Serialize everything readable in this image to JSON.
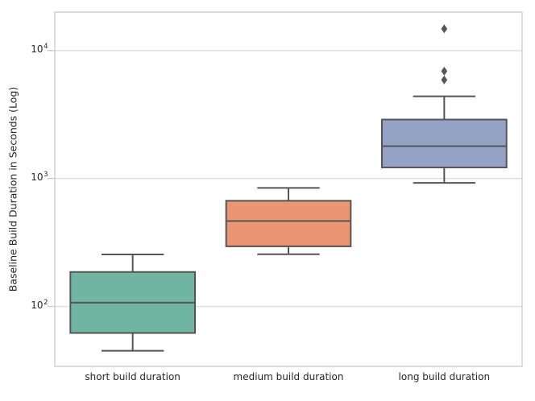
{
  "figure": {
    "background_color": "#ffffff",
    "axes_edge_color": "#cccccc",
    "grid_color": "#dddddd",
    "box_line_color": "#555555",
    "text_color": "#262626"
  },
  "chart_data": {
    "type": "boxplot",
    "title": "",
    "xlabel": "",
    "ylabel": "Baseline Build Duration in Seconds (Log)",
    "y_scale": "log",
    "ylim": [
      34,
      20000
    ],
    "grid": "horizontal",
    "legend": "none",
    "y_ticks": [
      {
        "text": "10",
        "exponent": "2",
        "value": 100
      },
      {
        "text": "10",
        "exponent": "3",
        "value": 1000
      },
      {
        "text": "10",
        "exponent": "4",
        "value": 10000
      }
    ],
    "categories": [
      "short build duration",
      "medium build duration",
      "long build duration"
    ],
    "series": [
      {
        "category": "short build duration",
        "color": "#6fb5a2",
        "whisker_low": 45,
        "q1": 62,
        "median": 107,
        "q3": 186,
        "whisker_high": 255,
        "outliers": []
      },
      {
        "category": "medium build duration",
        "color": "#ec9572",
        "whisker_low": 256,
        "q1": 295,
        "median": 465,
        "q3": 670,
        "whisker_high": 845,
        "outliers": []
      },
      {
        "category": "long build duration",
        "color": "#93a2c5",
        "whisker_low": 925,
        "q1": 1220,
        "median": 1790,
        "q3": 2890,
        "whisker_high": 4390,
        "outliers": [
          5900,
          6900,
          14800
        ]
      }
    ]
  }
}
